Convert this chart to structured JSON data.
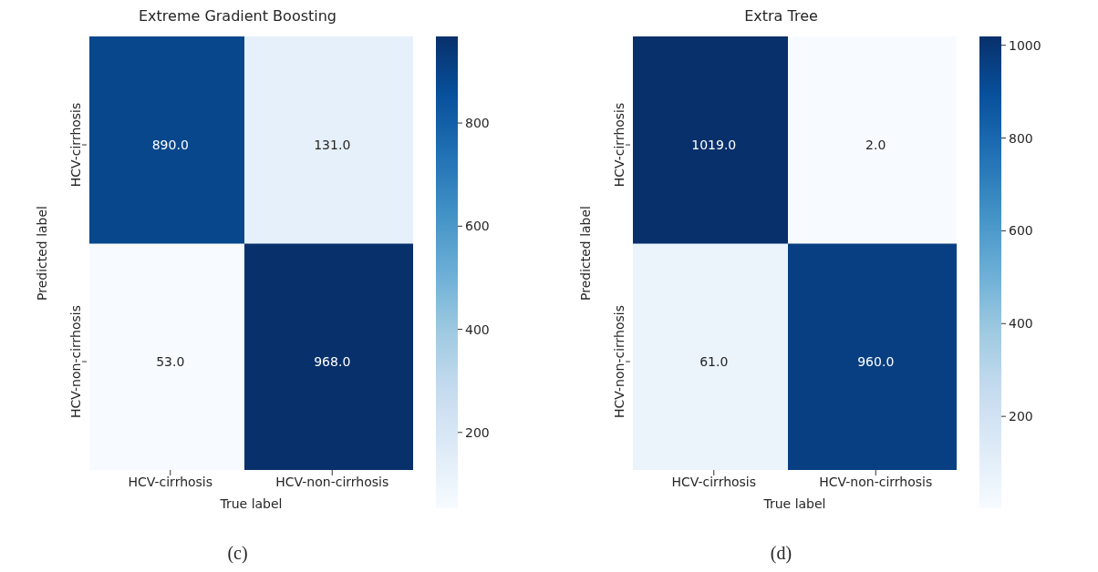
{
  "chart_data": [
    {
      "type": "heatmap",
      "title": "Extreme Gradient Boosting",
      "xlabel": "True label",
      "ylabel": "Predicted label",
      "categories": [
        "HCV-cirrhosis",
        "HCV-non-cirrhosis"
      ],
      "y_categories": [
        "HCV-cirrhosis",
        "HCV-non-cirrhosis"
      ],
      "cells": [
        [
          890,
          131
        ],
        [
          53,
          968
        ]
      ],
      "cell_labels": [
        [
          "890.0",
          "131.0"
        ],
        [
          "53.0",
          "968.0"
        ]
      ],
      "clim": [
        53,
        968
      ],
      "cticks": [
        200,
        400,
        600,
        800
      ],
      "annotations": [
        "(c)"
      ]
    },
    {
      "type": "heatmap",
      "title": "Extra Tree",
      "xlabel": "True label",
      "ylabel": "Predicted label",
      "categories": [
        "HCV-cirrhosis",
        "HCV-non-cirrhosis"
      ],
      "y_categories": [
        "HCV-cirrhosis",
        "HCV-non-cirrhosis"
      ],
      "cells": [
        [
          1019,
          2
        ],
        [
          61,
          960
        ]
      ],
      "cell_labels": [
        [
          "1019.0",
          "2.0"
        ],
        [
          "61.0",
          "960.0"
        ]
      ],
      "clim": [
        2,
        1019
      ],
      "cticks": [
        200,
        400,
        600,
        800,
        1000
      ],
      "annotations": [
        "(d)"
      ]
    }
  ]
}
